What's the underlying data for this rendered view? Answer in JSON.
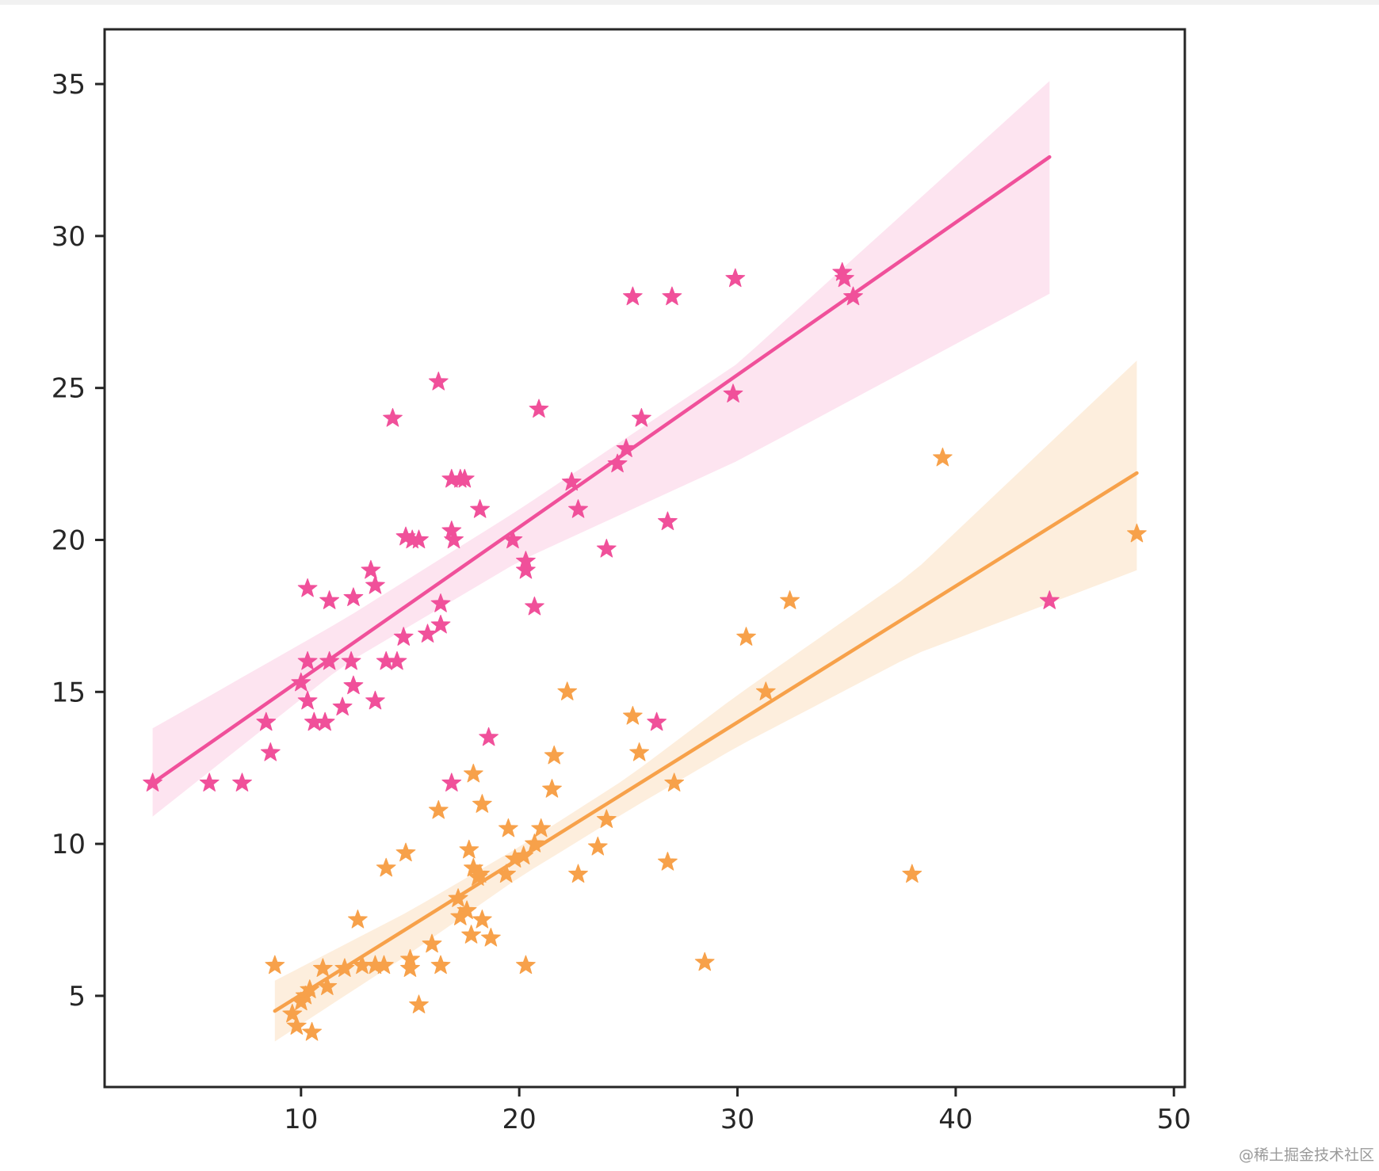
{
  "watermark": "@稀土掘金技术社区",
  "chart_data": {
    "type": "scatter",
    "title": "",
    "xlabel": "",
    "ylabel": "",
    "xlim": [
      1,
      50.5
    ],
    "ylim": [
      2,
      36.8
    ],
    "x_ticks": [
      10,
      20,
      30,
      40,
      50
    ],
    "y_ticks": [
      5,
      10,
      15,
      20,
      25,
      30,
      35
    ],
    "grid": false,
    "marker": "star",
    "series": [
      {
        "color": "#f0509a",
        "band_color": "#fde4f0",
        "regression": {
          "x_start": 3.2,
          "x_end": 44.3,
          "y_start": 12.0,
          "y_end": 32.6
        },
        "confidence_band": {
          "x": [
            3.2,
            12.0,
            20.0,
            30.0,
            44.3
          ],
          "upper": [
            13.8,
            17.4,
            21.0,
            25.8,
            35.1
          ],
          "lower": [
            10.9,
            15.9,
            19.3,
            22.6,
            28.1
          ]
        },
        "points": [
          [
            3.2,
            12.0
          ],
          [
            5.8,
            12.0
          ],
          [
            7.3,
            12.0
          ],
          [
            8.4,
            14.0
          ],
          [
            8.6,
            13.0
          ],
          [
            10.0,
            15.3
          ],
          [
            10.3,
            18.4
          ],
          [
            10.3,
            16.0
          ],
          [
            10.3,
            14.7
          ],
          [
            10.6,
            14.0
          ],
          [
            11.1,
            14.0
          ],
          [
            11.3,
            18.0
          ],
          [
            11.3,
            16.0
          ],
          [
            11.9,
            14.5
          ],
          [
            12.3,
            16.0
          ],
          [
            12.4,
            15.2
          ],
          [
            12.4,
            18.1
          ],
          [
            13.2,
            19.0
          ],
          [
            13.4,
            18.5
          ],
          [
            13.4,
            14.7
          ],
          [
            13.9,
            16.0
          ],
          [
            14.2,
            24.0
          ],
          [
            14.4,
            16.0
          ],
          [
            14.7,
            16.8
          ],
          [
            14.8,
            20.1
          ],
          [
            15.1,
            20.0
          ],
          [
            15.4,
            20.0
          ],
          [
            15.8,
            16.9
          ],
          [
            16.3,
            25.2
          ],
          [
            16.4,
            17.9
          ],
          [
            16.4,
            17.2
          ],
          [
            16.9,
            20.3
          ],
          [
            16.9,
            22.0
          ],
          [
            17.0,
            20.0
          ],
          [
            17.3,
            22.0
          ],
          [
            17.5,
            22.0
          ],
          [
            16.9,
            12.0
          ],
          [
            18.2,
            21.0
          ],
          [
            18.6,
            13.5
          ],
          [
            19.7,
            20.0
          ],
          [
            20.3,
            19.3
          ],
          [
            20.3,
            19.0
          ],
          [
            20.7,
            17.8
          ],
          [
            20.9,
            24.3
          ],
          [
            22.4,
            21.9
          ],
          [
            22.7,
            21.0
          ],
          [
            24.0,
            19.7
          ],
          [
            24.5,
            22.5
          ],
          [
            24.9,
            23.0
          ],
          [
            25.2,
            28.0
          ],
          [
            25.6,
            24.0
          ],
          [
            26.3,
            14.0
          ],
          [
            26.8,
            20.6
          ],
          [
            27.0,
            28.0
          ],
          [
            29.8,
            24.8
          ],
          [
            29.9,
            28.6
          ],
          [
            34.8,
            28.8
          ],
          [
            34.9,
            28.6
          ],
          [
            35.3,
            28.0
          ],
          [
            44.3,
            18.0
          ]
        ]
      },
      {
        "color": "#f7a14a",
        "band_color": "#fdeedd",
        "regression": {
          "x_start": 8.8,
          "x_end": 48.3,
          "y_start": 4.5,
          "y_end": 22.2
        },
        "confidence_band": {
          "x": [
            8.8,
            15.0,
            20.0,
            25.0,
            30.0,
            38.0,
            48.3
          ],
          "upper": [
            5.5,
            7.8,
            9.9,
            12.2,
            14.9,
            18.9,
            25.9
          ],
          "lower": [
            3.5,
            6.4,
            8.9,
            11.1,
            13.2,
            16.2,
            19.0
          ]
        },
        "points": [
          [
            8.8,
            6.0
          ],
          [
            9.6,
            4.4
          ],
          [
            9.8,
            4.0
          ],
          [
            10.0,
            4.8
          ],
          [
            10.2,
            5.0
          ],
          [
            10.4,
            5.2
          ],
          [
            10.5,
            3.8
          ],
          [
            11.0,
            5.9
          ],
          [
            11.2,
            5.3
          ],
          [
            12.0,
            5.9
          ],
          [
            12.6,
            7.5
          ],
          [
            12.8,
            6.0
          ],
          [
            13.4,
            6.0
          ],
          [
            13.8,
            6.0
          ],
          [
            13.9,
            9.2
          ],
          [
            14.8,
            9.7
          ],
          [
            15.0,
            6.2
          ],
          [
            15.0,
            5.9
          ],
          [
            15.4,
            4.7
          ],
          [
            16.0,
            6.7
          ],
          [
            16.3,
            11.1
          ],
          [
            16.4,
            6.0
          ],
          [
            17.2,
            8.2
          ],
          [
            17.3,
            7.6
          ],
          [
            17.6,
            7.8
          ],
          [
            17.7,
            9.8
          ],
          [
            17.8,
            7.0
          ],
          [
            17.9,
            12.3
          ],
          [
            17.9,
            9.2
          ],
          [
            18.1,
            8.9
          ],
          [
            18.2,
            9.0
          ],
          [
            18.3,
            11.3
          ],
          [
            18.3,
            7.5
          ],
          [
            18.7,
            6.9
          ],
          [
            19.4,
            9.0
          ],
          [
            19.5,
            10.5
          ],
          [
            19.8,
            9.5
          ],
          [
            20.2,
            9.6
          ],
          [
            20.3,
            6.0
          ],
          [
            20.7,
            10.0
          ],
          [
            21.0,
            10.5
          ],
          [
            21.5,
            11.8
          ],
          [
            21.6,
            12.9
          ],
          [
            22.2,
            15.0
          ],
          [
            22.7,
            9.0
          ],
          [
            23.6,
            9.9
          ],
          [
            24.0,
            10.8
          ],
          [
            25.2,
            14.2
          ],
          [
            25.5,
            13.0
          ],
          [
            26.8,
            9.4
          ],
          [
            27.1,
            12.0
          ],
          [
            28.5,
            6.1
          ],
          [
            30.4,
            16.8
          ],
          [
            31.3,
            15.0
          ],
          [
            32.4,
            18.0
          ],
          [
            38.0,
            9.0
          ],
          [
            39.4,
            22.7
          ],
          [
            48.3,
            20.2
          ]
        ]
      }
    ]
  }
}
